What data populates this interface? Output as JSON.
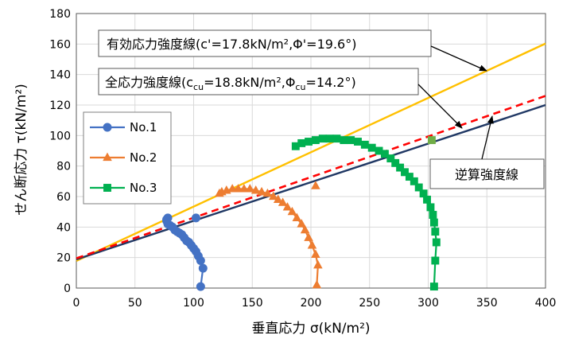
{
  "chart_data": {
    "type": "scatter",
    "title": "",
    "xlabel": "垂直応力 σ(kN/m²)",
    "ylabel": "せん断応力 τ(kN/m²)",
    "xlim": [
      0,
      400
    ],
    "ylim": [
      0,
      180
    ],
    "x_ticks": [
      "0",
      "50",
      "100",
      "150",
      "200",
      "250",
      "300",
      "350",
      "400"
    ],
    "y_ticks": [
      "0",
      "20",
      "40",
      "60",
      "80",
      "100",
      "120",
      "140",
      "160",
      "180"
    ],
    "grid": true,
    "legend_position": "left",
    "series": [
      {
        "name": "No.1",
        "color": "#4472C4",
        "marker": "circle",
        "x": [
          106,
          108,
          106,
          104,
          102,
          100,
          98,
          96,
          94,
          92,
          90,
          88,
          86,
          84,
          82,
          80,
          78,
          77,
          77,
          78
        ],
        "y": [
          1,
          13,
          18,
          21,
          24,
          26,
          28,
          30,
          31,
          33,
          35,
          36,
          37,
          38,
          40,
          41,
          42,
          44,
          45,
          46
        ]
      },
      {
        "name": "No.2",
        "color": "#ED7D31",
        "marker": "triangle",
        "x": [
          205,
          206,
          204,
          201,
          198,
          195,
          192,
          188,
          184,
          180,
          176,
          172,
          168,
          163,
          158,
          153,
          148,
          143,
          138,
          133,
          128,
          124,
          122
        ],
        "y": [
          2,
          15,
          22,
          28,
          33,
          38,
          42,
          46,
          50,
          53,
          56,
          58,
          60,
          62,
          63,
          64,
          65,
          65,
          65,
          65,
          64,
          63,
          62
        ]
      },
      {
        "name": "No.3",
        "color": "#00B050",
        "marker": "square",
        "x": [
          305,
          306,
          307,
          306,
          305,
          304,
          302,
          299,
          296,
          292,
          288,
          284,
          280,
          276,
          272,
          268,
          263,
          258,
          252,
          246,
          240,
          234,
          228,
          222,
          216,
          210,
          204,
          198,
          192,
          187
        ],
        "y": [
          1,
          18,
          30,
          37,
          43,
          48,
          53,
          58,
          62,
          66,
          70,
          73,
          76,
          79,
          82,
          85,
          88,
          90,
          92,
          94,
          96,
          97,
          97,
          98,
          98,
          98,
          97,
          96,
          95,
          93
        ]
      }
    ],
    "extra_points": [
      {
        "x": 102,
        "y": 46,
        "color": "#4472C4",
        "marker": "circle"
      },
      {
        "x": 204,
        "y": 67,
        "color": "#ED7D31",
        "marker": "triangle"
      },
      {
        "x": 303,
        "y": 97,
        "color": "#70AD47",
        "marker": "square"
      }
    ],
    "lines": [
      {
        "label": "有効応力強度線",
        "c": 17.8,
        "phi_deg": 19.6,
        "color": "#FFC000",
        "style": "solid",
        "x": [
          0,
          400
        ],
        "y": [
          17.8,
          160.3
        ]
      },
      {
        "label": "全応力強度線",
        "c": 18.8,
        "phi_deg": 14.2,
        "color": "#203864",
        "style": "solid",
        "x": [
          0,
          400
        ],
        "y": [
          18.8,
          120.0
        ]
      },
      {
        "label": "逆算強度線",
        "color": "#FF0000",
        "style": "dashed",
        "x": [
          0,
          400
        ],
        "y": [
          19.5,
          126.0
        ]
      }
    ],
    "annotations": {
      "effective": "有効応力強度線(c'=17.8kN/m²,Φ'=19.6°)",
      "total_prefix": "全応力強度線(c",
      "total_sub1": "cu",
      "total_mid": "=18.8kN/m²,Φ",
      "total_sub2": "cu",
      "total_suffix": "=14.2°)",
      "back": "逆算強度線"
    }
  }
}
